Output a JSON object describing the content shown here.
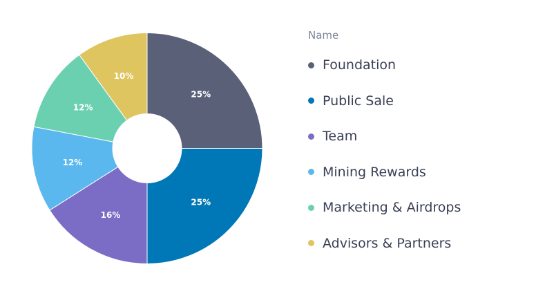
{
  "chart_data": {
    "type": "pie",
    "donut": true,
    "legend_title": "Name",
    "legend_position": "right",
    "start_angle": "top, clockwise",
    "slices": [
      {
        "label": "Foundation",
        "value": 25,
        "display": "25%",
        "color": "#5a6078"
      },
      {
        "label": "Public Sale",
        "value": 25,
        "display": "25%",
        "color": "#0077b6"
      },
      {
        "label": "Team",
        "value": 16,
        "display": "16%",
        "color": "#7b6cc6"
      },
      {
        "label": "Mining Rewards",
        "value": 12,
        "display": "12%",
        "color": "#5bb8ee"
      },
      {
        "label": "Marketing & Airdrops",
        "value": 12,
        "display": "12%",
        "color": "#6bd0b0"
      },
      {
        "label": "Advisors & Partners",
        "value": 10,
        "display": "10%",
        "color": "#dfc55f"
      }
    ]
  }
}
